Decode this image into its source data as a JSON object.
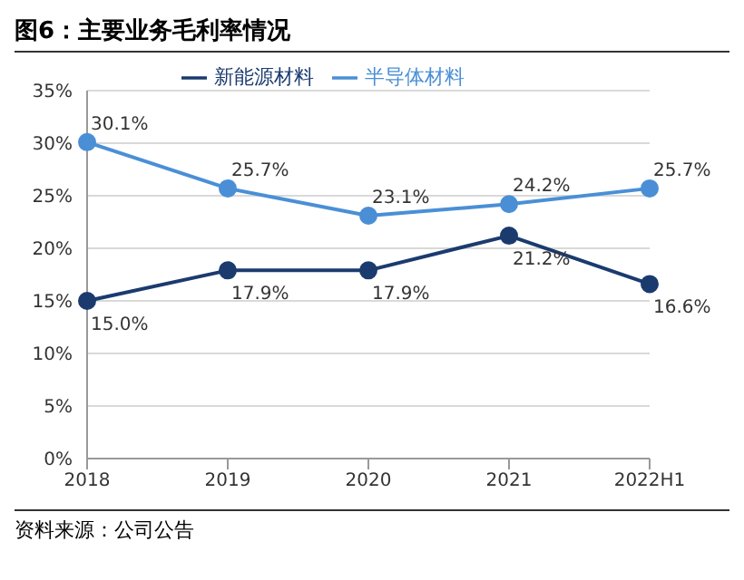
{
  "chart_data": {
    "type": "line",
    "title": "图6：主要业务毛利率情况",
    "annotations": [
      "资料来源：公司公告"
    ],
    "categories": [
      "2018",
      "2019",
      "2020",
      "2021",
      "2022H1"
    ],
    "series": [
      {
        "name": "新能源材料",
        "color": "#1b3b6f",
        "values": [
          15.0,
          17.9,
          17.9,
          21.2,
          16.6
        ],
        "value_labels": [
          "15.0%",
          "17.9%",
          "17.9%",
          "21.2%",
          "16.6%"
        ]
      },
      {
        "name": "半导体材料",
        "color": "#4a8fd6",
        "values": [
          30.1,
          25.7,
          23.1,
          24.2,
          25.7
        ],
        "value_labels": [
          "30.1%",
          "25.7%",
          "23.1%",
          "24.2%",
          "25.7%"
        ]
      }
    ],
    "ylim": [
      0,
      35
    ],
    "yticks": [
      {
        "value": 0,
        "label": "0%"
      },
      {
        "value": 5,
        "label": "5%"
      },
      {
        "value": 10,
        "label": "10%"
      },
      {
        "value": 15,
        "label": "15%"
      },
      {
        "value": 20,
        "label": "20%"
      },
      {
        "value": 25,
        "label": "25%"
      },
      {
        "value": 30,
        "label": "30%"
      },
      {
        "value": 35,
        "label": "35%"
      }
    ],
    "grid": "y",
    "legend": "top",
    "marker": "circle",
    "line_style": "solid"
  }
}
